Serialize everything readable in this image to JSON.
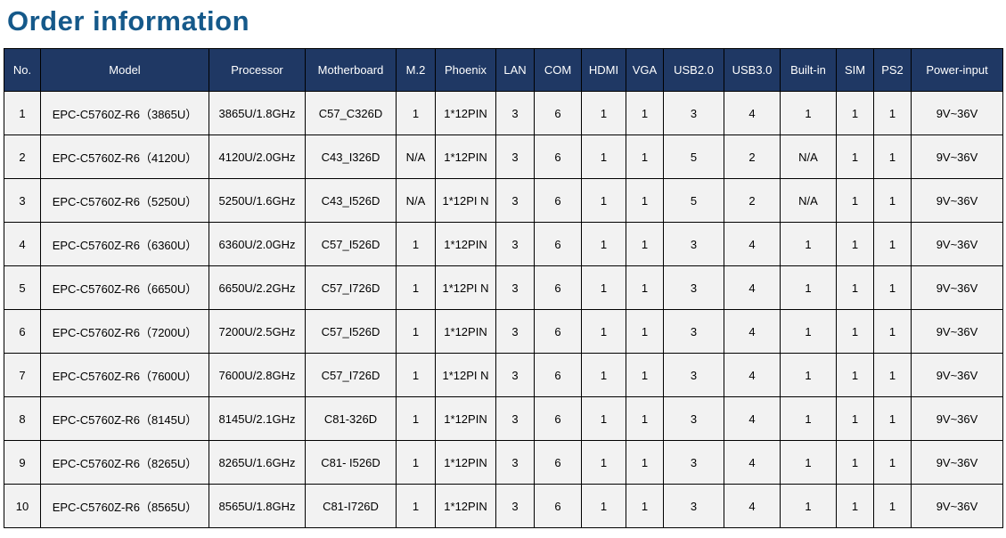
{
  "page": {
    "title": "Order information"
  },
  "colors": {
    "title_text": "#15598a",
    "header_bg": "#1f3864",
    "header_text": "#ffffff",
    "row_bg": "#f2f2f2",
    "border": "#000000"
  },
  "table": {
    "headers": [
      "No.",
      "Model",
      "Processor",
      "Motherboard",
      "M.2",
      "Phoenix",
      "LAN",
      "COM",
      "HDMI",
      "VGA",
      "USB2.0",
      "USB3.0",
      "Built-in",
      "SIM",
      "PS2",
      "Power-input"
    ],
    "rows": [
      [
        "1",
        "EPC-C5760Z-R6（3865U）",
        "3865U/1.8GHz",
        "C57_C326D",
        "1",
        "1*12PIN",
        "3",
        "6",
        "1",
        "1",
        "3",
        "4",
        "1",
        "1",
        "1",
        "9V~36V"
      ],
      [
        "2",
        "EPC-C5760Z-R6（4120U）",
        "4120U/2.0GHz",
        "C43_I326D",
        "N/A",
        "1*12PIN",
        "3",
        "6",
        "1",
        "1",
        "5",
        "2",
        "N/A",
        "1",
        "1",
        "9V~36V"
      ],
      [
        "3",
        "EPC-C5760Z-R6（5250U）",
        "5250U/1.6GHz",
        "C43_I526D",
        "N/A",
        "1*12PI N",
        "3",
        "6",
        "1",
        "1",
        "5",
        "2",
        "N/A",
        "1",
        "1",
        "9V~36V"
      ],
      [
        "4",
        "EPC-C5760Z-R6（6360U）",
        "6360U/2.0GHz",
        "C57_I526D",
        "1",
        "1*12PIN",
        "3",
        "6",
        "1",
        "1",
        "3",
        "4",
        "1",
        "1",
        "1",
        "9V~36V"
      ],
      [
        "5",
        "EPC-C5760Z-R6（6650U）",
        "6650U/2.2GHz",
        "C57_I726D",
        "1",
        "1*12PI N",
        "3",
        "6",
        "1",
        "1",
        "3",
        "4",
        "1",
        "1",
        "1",
        "9V~36V"
      ],
      [
        "6",
        "EPC-C5760Z-R6（7200U）",
        "7200U/2.5GHz",
        "C57_I526D",
        "1",
        "1*12PIN",
        "3",
        "6",
        "1",
        "1",
        "3",
        "4",
        "1",
        "1",
        "1",
        "9V~36V"
      ],
      [
        "7",
        "EPC-C5760Z-R6（7600U）",
        "7600U/2.8GHz",
        "C57_I726D",
        "1",
        "1*12PI N",
        "3",
        "6",
        "1",
        "1",
        "3",
        "4",
        "1",
        "1",
        "1",
        "9V~36V"
      ],
      [
        "8",
        "EPC-C5760Z-R6（8145U）",
        "8145U/2.1GHz",
        "C81-326D",
        "1",
        "1*12PIN",
        "3",
        "6",
        "1",
        "1",
        "3",
        "4",
        "1",
        "1",
        "1",
        "9V~36V"
      ],
      [
        "9",
        "EPC-C5760Z-R6（8265U）",
        "8265U/1.6GHz",
        "C81- I526D",
        "1",
        "1*12PIN",
        "3",
        "6",
        "1",
        "1",
        "3",
        "4",
        "1",
        "1",
        "1",
        "9V~36V"
      ],
      [
        "10",
        "EPC-C5760Z-R6（8565U）",
        "8565U/1.8GHz",
        "C81-I726D",
        "1",
        "1*12PIN",
        "3",
        "6",
        "1",
        "1",
        "3",
        "4",
        "1",
        "1",
        "1",
        "9V~36V"
      ]
    ]
  }
}
